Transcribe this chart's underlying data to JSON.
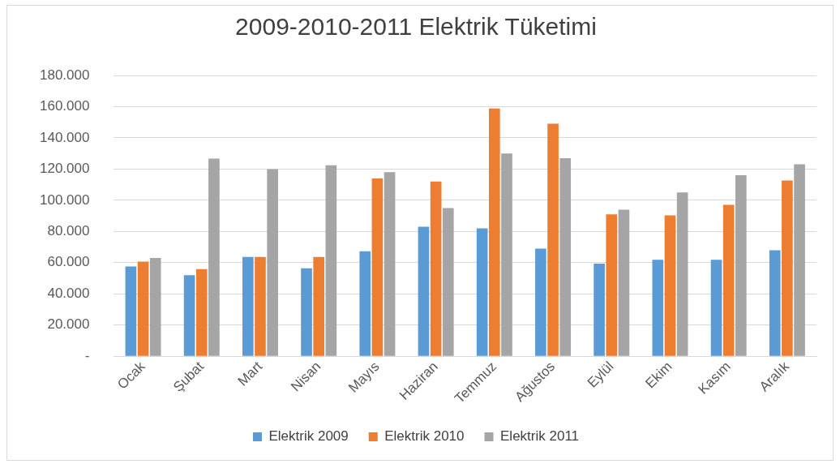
{
  "chart_data": {
    "type": "bar",
    "title": "2009-2010-2011 Elektrik Tüketimi",
    "categories": [
      "Ocak",
      "Şubat",
      "Mart",
      "Nisan",
      "Mayıs",
      "Haziran",
      "Temmuz",
      "Ağustos",
      "Eylül",
      "Ekim",
      "Kasım",
      "Aralık"
    ],
    "series": [
      {
        "name": "Elektrik 2009",
        "color": "#5b9bd5",
        "values": [
          57600,
          52000,
          63600,
          56400,
          67300,
          83000,
          82000,
          69000,
          59400,
          61800,
          61800,
          68000
        ]
      },
      {
        "name": "Elektrik 2010",
        "color": "#ed7d31",
        "values": [
          60600,
          55800,
          63600,
          63600,
          114000,
          112000,
          158800,
          149000,
          91000,
          90300,
          97000,
          112700
        ]
      },
      {
        "name": "Elektrik 2011",
        "color": "#a5a5a5",
        "values": [
          63000,
          126700,
          120000,
          122400,
          118000,
          95000,
          130000,
          127000,
          94000,
          105000,
          116000,
          123000
        ]
      }
    ],
    "ylim": [
      0,
      180000
    ],
    "yticks": [
      {
        "value": 0,
        "label": "-"
      },
      {
        "value": 20000,
        "label": "20.000"
      },
      {
        "value": 40000,
        "label": "40.000"
      },
      {
        "value": 60000,
        "label": "60.000"
      },
      {
        "value": 80000,
        "label": "80.000"
      },
      {
        "value": 100000,
        "label": "100.000"
      },
      {
        "value": 120000,
        "label": "120.000"
      },
      {
        "value": 140000,
        "label": "140.000"
      },
      {
        "value": 160000,
        "label": "160.000"
      },
      {
        "value": 180000,
        "label": "180.000"
      }
    ],
    "grid": "y",
    "legend": "bottom"
  }
}
